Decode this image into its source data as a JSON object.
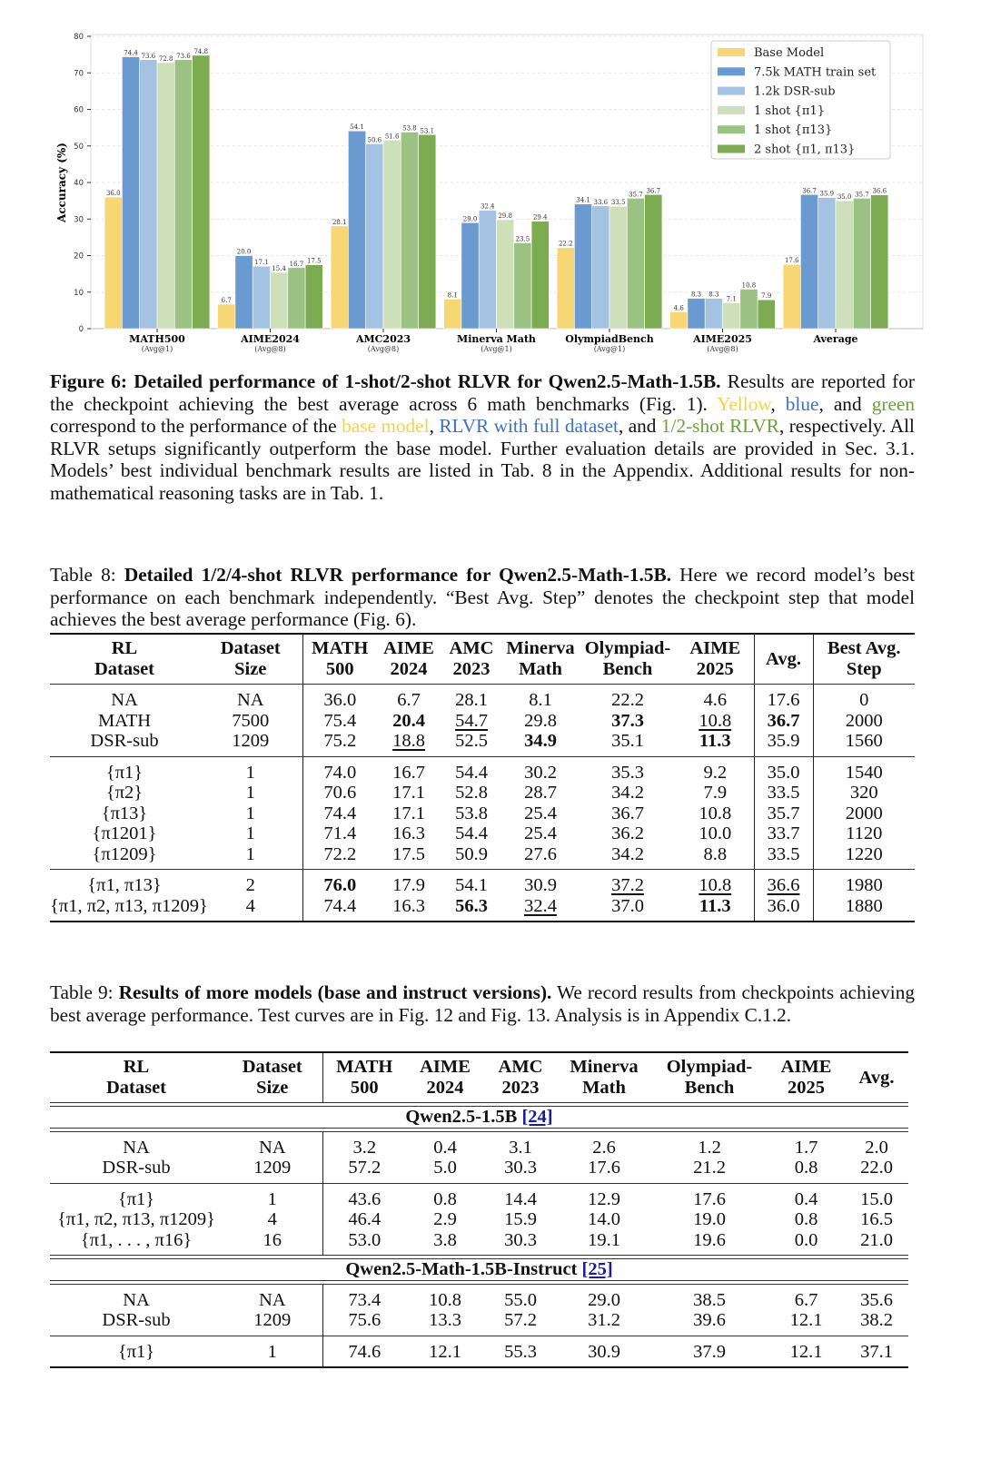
{
  "chart_data": {
    "type": "bar",
    "title": "",
    "ylabel": "Accuracy (%)",
    "xlabel": "",
    "ylim": [
      0,
      80
    ],
    "yticks": [
      0,
      10,
      20,
      30,
      40,
      50,
      60,
      70,
      80
    ],
    "grid": true,
    "legend_position": "top-right",
    "categories": [
      "MATH500",
      "AIME2024",
      "AMC2023",
      "Minerva Math",
      "OlympiadBench",
      "AIME2025",
      "Average"
    ],
    "category_sublabels": [
      "(Avg@1)",
      "(Avg@8)",
      "(Avg@8)",
      "(Avg@1)",
      "(Avg@1)",
      "(Avg@8)",
      ""
    ],
    "series": [
      {
        "name": "Base Model",
        "color": "#f7d774",
        "values": [
          36.0,
          6.7,
          28.1,
          8.1,
          22.2,
          4.6,
          17.6
        ]
      },
      {
        "name": "7.5k MATH train set",
        "color": "#6a9ad0",
        "values": [
          74.4,
          20.0,
          54.1,
          29.0,
          34.1,
          8.3,
          36.7
        ]
      },
      {
        "name": "1.2k DSR-sub",
        "color": "#a4c3e3",
        "values": [
          73.6,
          17.1,
          50.6,
          32.4,
          33.6,
          8.3,
          35.9
        ]
      },
      {
        "name": "1 shot {π1}",
        "color": "#cde0b9",
        "values": [
          72.8,
          15.4,
          51.6,
          29.8,
          33.5,
          7.1,
          35.0
        ]
      },
      {
        "name": "1 shot {π13}",
        "color": "#9cc283",
        "values": [
          73.6,
          16.7,
          53.8,
          23.5,
          35.7,
          10.8,
          35.7
        ]
      },
      {
        "name": "2 shot {π1, π13}",
        "color": "#7dab52",
        "values": [
          74.8,
          17.5,
          53.1,
          29.4,
          36.7,
          7.9,
          36.6
        ]
      }
    ]
  },
  "figure_caption": {
    "label": "Figure 6:",
    "title": "Detailed performance of 1-shot/2-shot RLVR for Qwen2.5-Math-1.5B.",
    "segments": [
      {
        "text": " Results are reported for the checkpoint achieving the best average across 6 math benchmarks (Fig. 1). ",
        "color": "#111111"
      },
      {
        "text": "Yellow",
        "color": "#f2d34f"
      },
      {
        "text": ", ",
        "color": "#111111"
      },
      {
        "text": "blue",
        "color": "#3a73c4"
      },
      {
        "text": ", and ",
        "color": "#111111"
      },
      {
        "text": "green",
        "color": "#6aa33a"
      },
      {
        "text": " correspond to the performance of the ",
        "color": "#111111"
      },
      {
        "text": "base model",
        "color": "#f2d34f"
      },
      {
        "text": ", ",
        "color": "#111111"
      },
      {
        "text": "RLVR with full dataset",
        "color": "#3a73c4"
      },
      {
        "text": ", and ",
        "color": "#111111"
      },
      {
        "text": "1/2-shot RLVR",
        "color": "#6aa33a"
      },
      {
        "text": ", respectively. All RLVR setups significantly outperform the base model. Further evaluation details are provided in Sec. 3.1. Models’ best individual benchmark results are listed in Tab. 8 in the Appendix. Additional results for non-mathematical reasoning tasks are in Tab. 1.",
        "color": "#111111"
      }
    ]
  },
  "table8": {
    "label": "Table 8:",
    "title": "Detailed 1/2/4-shot RLVR performance for Qwen2.5-Math-1.5B.",
    "caption": " Here we record model’s best performance on each benchmark independently. “Best Avg. Step” denotes the checkpoint step that model achieves the best average performance (Fig. 6).",
    "headers": [
      [
        "RL",
        "Dataset"
      ],
      [
        "Dataset",
        "Size"
      ],
      [
        "MATH",
        "500"
      ],
      [
        "AIME",
        "2024"
      ],
      [
        "AMC",
        "2023"
      ],
      [
        "Minerva",
        "Math"
      ],
      [
        "Olympiad-",
        "Bench"
      ],
      [
        "AIME",
        "2025"
      ],
      [
        "Avg."
      ],
      [
        "Best Avg.",
        "Step"
      ]
    ],
    "groups": [
      [
        {
          "cells": [
            "NA",
            "NA",
            "36.0",
            "6.7",
            "28.1",
            "8.1",
            "22.2",
            "4.6",
            "17.6",
            "0"
          ],
          "fmt": [
            "",
            "",
            "",
            "",
            "",
            "",
            "",
            "",
            "",
            ""
          ]
        },
        {
          "cells": [
            "MATH",
            "7500",
            "75.4",
            "20.4",
            "54.7",
            "29.8",
            "37.3",
            "10.8",
            "36.7",
            "2000"
          ],
          "fmt": [
            "",
            "",
            "",
            "b",
            "u",
            "",
            "b",
            "u",
            "b",
            ""
          ]
        },
        {
          "cells": [
            "DSR-sub",
            "1209",
            "75.2",
            "18.8",
            "52.5",
            "34.9",
            "35.1",
            "11.3",
            "35.9",
            "1560"
          ],
          "fmt": [
            "",
            "",
            "",
            "u",
            "",
            "b",
            "",
            "b",
            "",
            ""
          ]
        }
      ],
      [
        {
          "cells": [
            "{π1}",
            "1",
            "74.0",
            "16.7",
            "54.4",
            "30.2",
            "35.3",
            "9.2",
            "35.0",
            "1540"
          ],
          "fmt": [
            "",
            "",
            "",
            "",
            "",
            "",
            "",
            "",
            "",
            ""
          ]
        },
        {
          "cells": [
            "{π2}",
            "1",
            "70.6",
            "17.1",
            "52.8",
            "28.7",
            "34.2",
            "7.9",
            "33.5",
            "320"
          ],
          "fmt": [
            "",
            "",
            "",
            "",
            "",
            "",
            "",
            "",
            "",
            ""
          ]
        },
        {
          "cells": [
            "{π13}",
            "1",
            "74.4",
            "17.1",
            "53.8",
            "25.4",
            "36.7",
            "10.8",
            "35.7",
            "2000"
          ],
          "fmt": [
            "",
            "",
            "",
            "",
            "",
            "",
            "",
            "",
            "",
            ""
          ]
        },
        {
          "cells": [
            "{π1201}",
            "1",
            "71.4",
            "16.3",
            "54.4",
            "25.4",
            "36.2",
            "10.0",
            "33.7",
            "1120"
          ],
          "fmt": [
            "",
            "",
            "",
            "",
            "",
            "",
            "",
            "",
            "",
            ""
          ]
        },
        {
          "cells": [
            "{π1209}",
            "1",
            "72.2",
            "17.5",
            "50.9",
            "27.6",
            "34.2",
            "8.8",
            "33.5",
            "1220"
          ],
          "fmt": [
            "",
            "",
            "",
            "",
            "",
            "",
            "",
            "",
            "",
            ""
          ]
        }
      ],
      [
        {
          "cells": [
            "{π1, π13}",
            "2",
            "76.0",
            "17.9",
            "54.1",
            "30.9",
            "37.2",
            "10.8",
            "36.6",
            "1980"
          ],
          "fmt": [
            "",
            "",
            "b",
            "",
            "",
            "",
            "u",
            "u",
            "u",
            ""
          ]
        },
        {
          "cells": [
            "{π1, π2, π13, π1209}",
            "4",
            "74.4",
            "16.3",
            "56.3",
            "32.4",
            "37.0",
            "11.3",
            "36.0",
            "1880"
          ],
          "fmt": [
            "",
            "",
            "",
            "",
            "b",
            "u",
            "",
            "b",
            "",
            ""
          ]
        }
      ]
    ]
  },
  "table9": {
    "label": "Table 9:",
    "title": "Results of more models (base and instruct versions).",
    "caption": " We record results from checkpoints achieving best average performance. Test curves are in Fig. 12 and Fig. 13. Analysis is in Appendix C.1.2.",
    "headers": [
      [
        "RL",
        "Dataset"
      ],
      [
        "Dataset",
        "Size"
      ],
      [
        "MATH",
        "500"
      ],
      [
        "AIME",
        "2024"
      ],
      [
        "AMC",
        "2023"
      ],
      [
        "Minerva",
        "Math"
      ],
      [
        "Olympiad-",
        "Bench"
      ],
      [
        "AIME",
        "2025"
      ],
      [
        "Avg."
      ]
    ],
    "sections": [
      {
        "title": "Qwen2.5-1.5B",
        "ref": "[24]",
        "groups": [
          [
            [
              "NA",
              "NA",
              "3.2",
              "0.4",
              "3.1",
              "2.6",
              "1.2",
              "1.7",
              "2.0"
            ],
            [
              "DSR-sub",
              "1209",
              "57.2",
              "5.0",
              "30.3",
              "17.6",
              "21.2",
              "0.8",
              "22.0"
            ]
          ],
          [
            [
              "{π1}",
              "1",
              "43.6",
              "0.8",
              "14.4",
              "12.9",
              "17.6",
              "0.4",
              "15.0"
            ],
            [
              "{π1, π2, π13, π1209}",
              "4",
              "46.4",
              "2.9",
              "15.9",
              "14.0",
              "19.0",
              "0.8",
              "16.5"
            ],
            [
              "{π1, . . . , π16}",
              "16",
              "53.0",
              "3.8",
              "30.3",
              "19.1",
              "19.6",
              "0.0",
              "21.0"
            ]
          ]
        ]
      },
      {
        "title": "Qwen2.5-Math-1.5B-Instruct",
        "ref": "[25]",
        "groups": [
          [
            [
              "NA",
              "NA",
              "73.4",
              "10.8",
              "55.0",
              "29.0",
              "38.5",
              "6.7",
              "35.6"
            ],
            [
              "DSR-sub",
              "1209",
              "75.6",
              "13.3",
              "57.2",
              "31.2",
              "39.6",
              "12.1",
              "38.2"
            ]
          ],
          [
            [
              "{π1}",
              "1",
              "74.6",
              "12.1",
              "55.3",
              "30.9",
              "37.9",
              "12.1",
              "37.1"
            ]
          ]
        ]
      }
    ]
  }
}
